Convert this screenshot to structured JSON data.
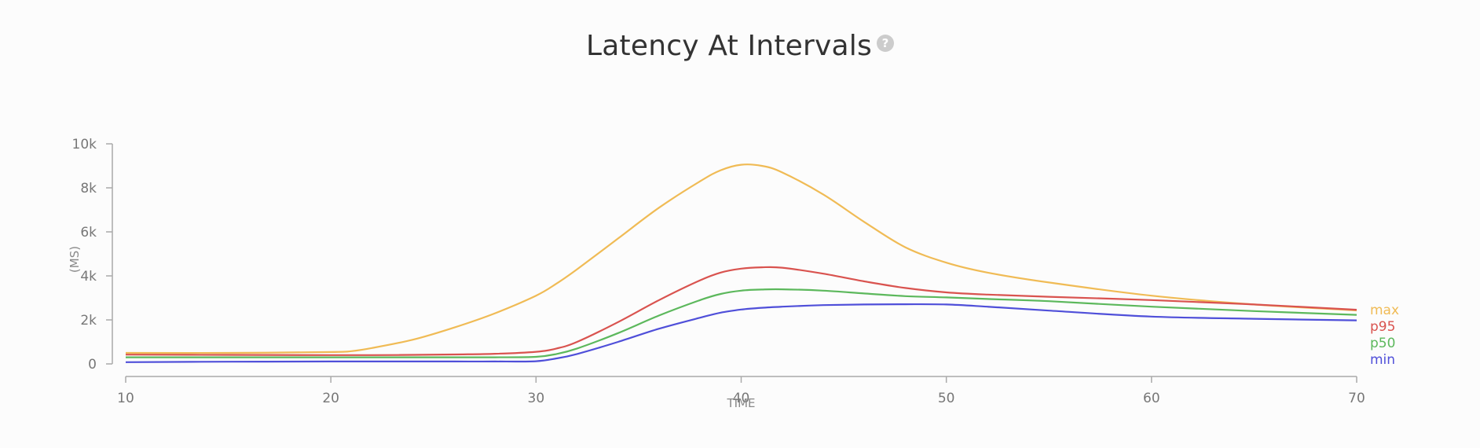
{
  "header": {
    "title": "Latency At Intervals",
    "help_icon": "question-circle-icon",
    "help_glyph": "?"
  },
  "chart_data": {
    "type": "line",
    "title": "Latency At Intervals",
    "xlabel": "TIME",
    "ylabel": "(MS)",
    "xlim": [
      10,
      70
    ],
    "ylim": [
      0,
      10000
    ],
    "x_ticks": [
      10,
      20,
      30,
      40,
      50,
      60,
      70
    ],
    "x_tick_labels": [
      "10",
      "20",
      "30",
      "40",
      "50",
      "60",
      "70"
    ],
    "y_ticks": [
      0,
      2000,
      4000,
      6000,
      8000,
      10000
    ],
    "y_tick_labels": [
      "0",
      "2k",
      "4k",
      "6k",
      "8k",
      "10k"
    ],
    "grid": false,
    "legend_position": "right",
    "x": [
      10,
      15,
      20,
      21,
      22,
      24,
      26,
      28,
      30,
      31,
      32,
      34,
      36,
      38,
      39,
      40,
      41,
      42,
      44,
      46,
      48,
      50,
      52,
      55,
      60,
      65,
      70
    ],
    "series": [
      {
        "name": "max",
        "color": "#f0bb55",
        "values": [
          500,
          500,
          540,
          580,
          720,
          1100,
          1650,
          2300,
          3100,
          3650,
          4300,
          5700,
          7100,
          8300,
          8800,
          9050,
          9000,
          8700,
          7700,
          6450,
          5300,
          4600,
          4150,
          3700,
          3100,
          2700,
          2430
        ]
      },
      {
        "name": "p95",
        "color": "#d9534f",
        "values": [
          420,
          410,
          400,
          400,
          400,
          410,
          430,
          460,
          550,
          700,
          1000,
          1900,
          2900,
          3800,
          4150,
          4330,
          4390,
          4370,
          4100,
          3750,
          3450,
          3250,
          3150,
          3050,
          2900,
          2700,
          2460
        ]
      },
      {
        "name": "p50",
        "color": "#5cb85c",
        "values": [
          300,
          300,
          300,
          300,
          300,
          300,
          300,
          300,
          320,
          450,
          700,
          1400,
          2200,
          2900,
          3180,
          3330,
          3380,
          3390,
          3330,
          3200,
          3080,
          3020,
          2950,
          2850,
          2600,
          2400,
          2230
        ]
      },
      {
        "name": "min",
        "color": "#4f4fd9",
        "values": [
          80,
          100,
          110,
          110,
          110,
          110,
          110,
          110,
          120,
          250,
          450,
          1000,
          1600,
          2100,
          2330,
          2470,
          2550,
          2600,
          2670,
          2700,
          2710,
          2700,
          2600,
          2420,
          2150,
          2050,
          1980
        ]
      }
    ]
  }
}
